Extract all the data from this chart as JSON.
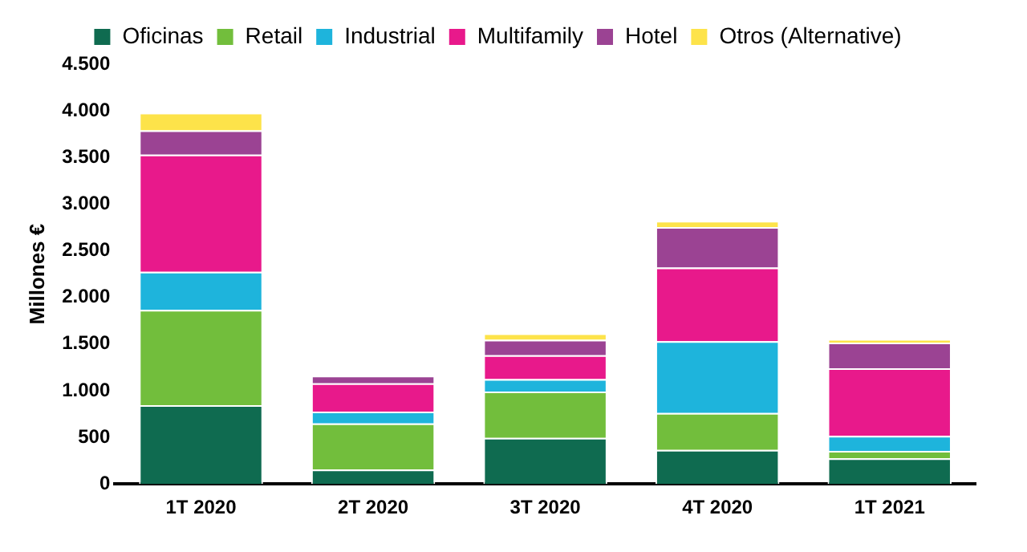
{
  "chart_data": {
    "type": "bar",
    "stacked": true,
    "ylabel": "Millones €",
    "legend": "top",
    "grid": false,
    "categories": [
      "1T 2020",
      "2T 2020",
      "3T 2020",
      "4T 2020",
      "1T 2021"
    ],
    "ylim": [
      0,
      4500
    ],
    "yticks": [
      0,
      500,
      {
        "value": 1000,
        "label": "1.000"
      },
      {
        "value": 1500,
        "label": "1.500"
      },
      {
        "value": 2000,
        "label": "2.000"
      },
      {
        "value": 2500,
        "label": "2.500"
      },
      {
        "value": 3000,
        "label": "3.000"
      },
      {
        "value": 3500,
        "label": "3.500"
      },
      {
        "value": 4000,
        "label": "4.000"
      },
      {
        "value": 4500,
        "label": "4.500"
      }
    ],
    "series": [
      {
        "name": "Oficinas",
        "color": "#0f6b50",
        "values": [
          845,
          155,
          495,
          365,
          275
        ]
      },
      {
        "name": "Retail",
        "color": "#72be3c",
        "values": [
          1020,
          495,
          495,
          395,
          80
        ]
      },
      {
        "name": "Industrial",
        "color": "#1eb4dc",
        "values": [
          410,
          125,
          135,
          770,
          160
        ]
      },
      {
        "name": "Multifamily",
        "color": "#e8198b",
        "values": [
          1255,
          305,
          255,
          790,
          725
        ]
      },
      {
        "name": "Hotel",
        "color": "#9b4393",
        "values": [
          260,
          80,
          165,
          435,
          275
        ]
      },
      {
        "name": "Otros (Alternative)",
        "color": "#fde34a",
        "values": [
          190,
          0,
          70,
          65,
          40
        ]
      }
    ]
  }
}
